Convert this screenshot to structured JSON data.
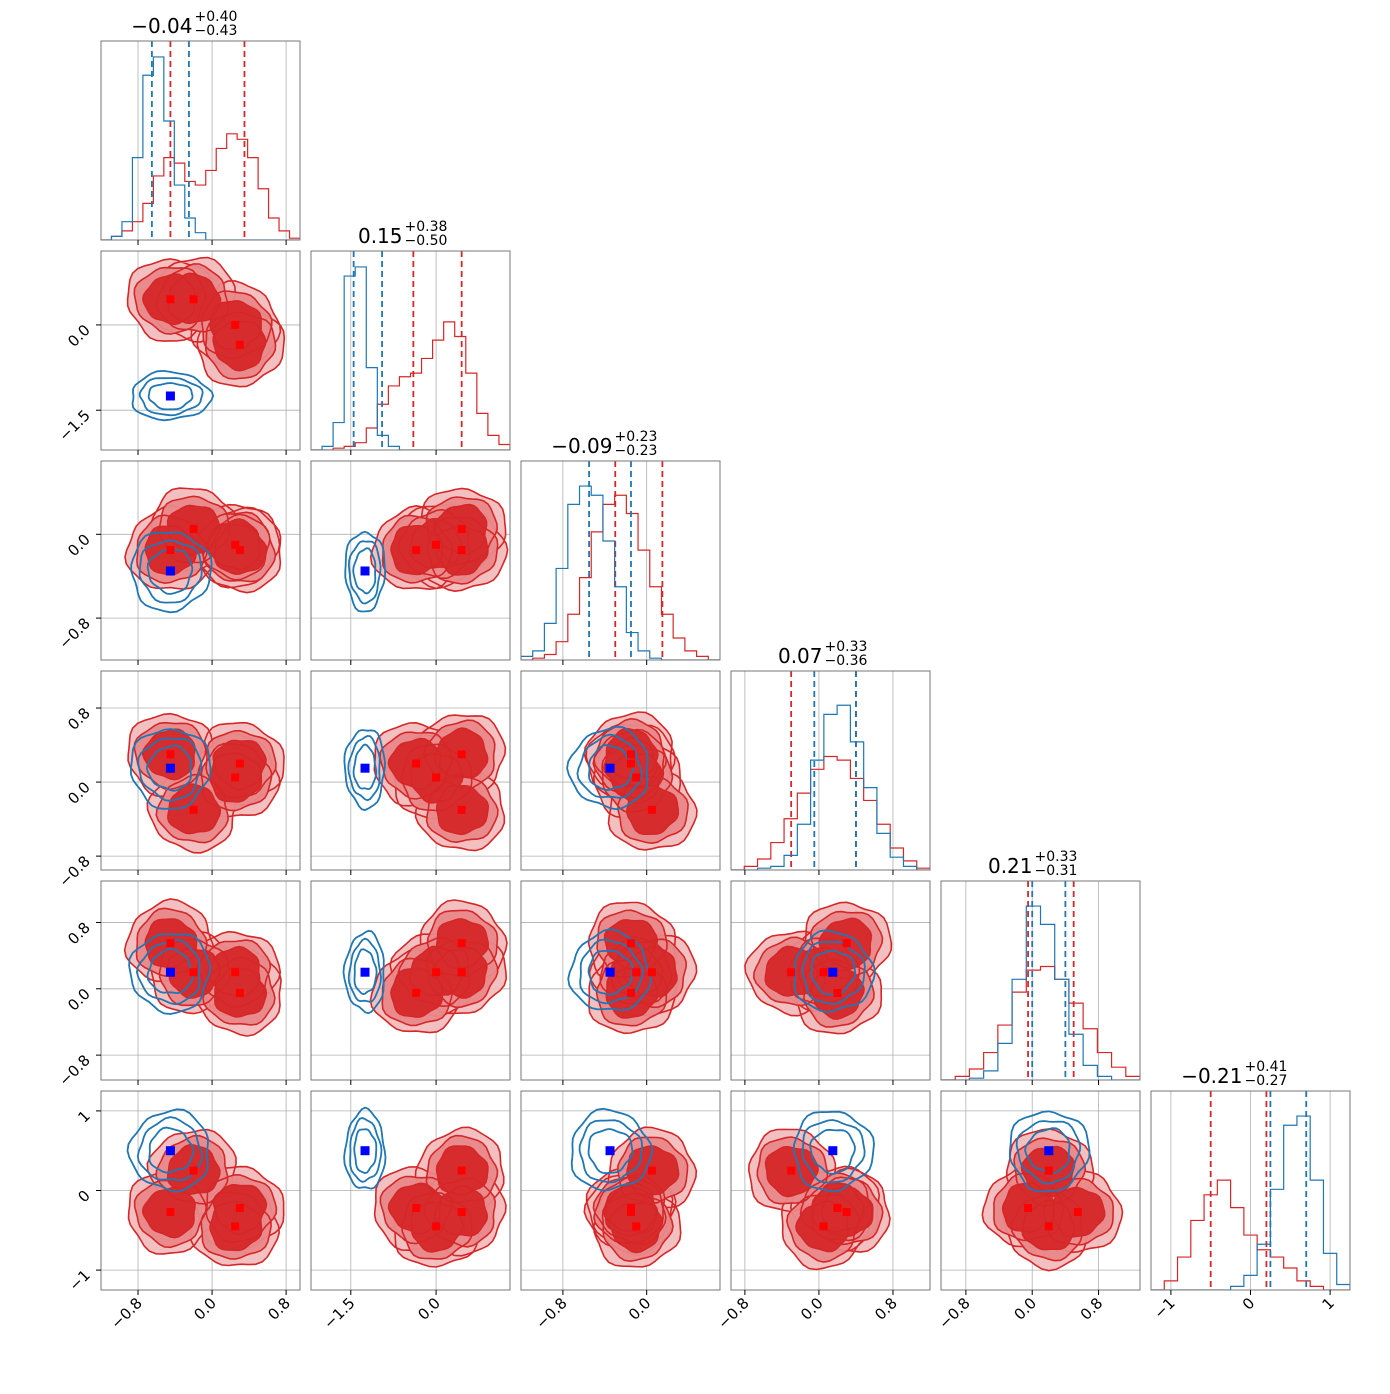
{
  "colors": {
    "red": "#d62728",
    "red_fill": "#e8888a",
    "red_light": "#f2b9ba",
    "blue": "#1f77b4",
    "marker_red": "#ff0000",
    "marker_blue": "#0000ff",
    "grid": "#b0b0b0"
  },
  "chart_data": {
    "type": "corner",
    "n_params": 6,
    "grid": true,
    "titles": [
      {
        "median": "−0.04",
        "plus": "+0.40",
        "minus": "−0.43"
      },
      {
        "median": "0.15",
        "plus": "+0.38",
        "minus": "−0.50"
      },
      {
        "median": "−0.09",
        "plus": "+0.23",
        "minus": "−0.23"
      },
      {
        "median": "0.07",
        "plus": "+0.33",
        "minus": "−0.36"
      },
      {
        "median": "0.21",
        "plus": "+0.33",
        "minus": "−0.31"
      },
      {
        "median": "−0.21",
        "plus": "+0.41",
        "minus": "−0.27"
      }
    ],
    "ranges": [
      [
        -1.2,
        0.95
      ],
      [
        -2.2,
        1.3
      ],
      [
        -1.2,
        0.7
      ],
      [
        -0.95,
        1.2
      ],
      [
        -1.1,
        1.3
      ],
      [
        -1.25,
        1.25
      ]
    ],
    "ticks": [
      {
        "values": [
          -0.8,
          0.0,
          0.8
        ],
        "labels": [
          "−0.8",
          "0.0",
          "0.8"
        ]
      },
      {
        "values": [
          -1.5,
          0.0
        ],
        "labels": [
          "−1.5",
          "0.0"
        ]
      },
      {
        "values": [
          -0.8,
          0.0
        ],
        "labels": [
          "−0.8",
          "0.0"
        ]
      },
      {
        "values": [
          -0.8,
          0.0,
          0.8
        ],
        "labels": [
          "−0.8",
          "0.0",
          "0.8"
        ]
      },
      {
        "values": [
          -0.8,
          0.0,
          0.8
        ],
        "labels": [
          "−0.8",
          "0.0",
          "0.8"
        ]
      },
      {
        "values": [
          -1,
          0,
          1
        ],
        "labels": [
          "−1",
          "0",
          "1"
        ]
      }
    ],
    "red_modes": [
      [
        -0.45,
        0.45,
        -0.15,
        0.3,
        0.55,
        -0.27
      ],
      [
        -0.2,
        0.45,
        0.05,
        -0.3,
        0.2,
        0.25
      ],
      [
        0.25,
        0.0,
        -0.1,
        0.05,
        0.2,
        -0.45
      ],
      [
        0.3,
        -0.35,
        -0.15,
        0.2,
        -0.05,
        -0.22
      ]
    ],
    "blue_truth": [
      -0.45,
      -1.25,
      -0.35,
      0.15,
      0.2,
      0.5
    ],
    "series": [
      {
        "name": "red",
        "quantile_lines": [
          [
            -0.45,
            0.35
          ],
          [
            -0.4,
            0.45
          ],
          [
            -0.3,
            0.15
          ],
          [
            -0.3,
            0.4
          ],
          [
            -0.05,
            0.5
          ],
          [
            -0.5,
            0.2
          ]
        ],
        "hist": [
          [
            0,
            0.02,
            0.05,
            0.1,
            0.2,
            0.35,
            0.45,
            0.42,
            0.32,
            0.3,
            0.38,
            0.5,
            0.58,
            0.55,
            0.45,
            0.28,
            0.12,
            0.05,
            0.01
          ],
          [
            0,
            0,
            0.01,
            0.02,
            0.04,
            0.12,
            0.25,
            0.35,
            0.4,
            0.42,
            0.5,
            0.6,
            0.7,
            0.62,
            0.42,
            0.2,
            0.08,
            0.03
          ],
          [
            0,
            0.01,
            0.03,
            0.1,
            0.25,
            0.45,
            0.7,
            0.85,
            0.9,
            0.8,
            0.6,
            0.4,
            0.25,
            0.12,
            0.05,
            0.02,
            0
          ],
          [
            0,
            0.02,
            0.06,
            0.15,
            0.28,
            0.42,
            0.55,
            0.62,
            0.6,
            0.5,
            0.38,
            0.25,
            0.12,
            0.05,
            0.01
          ],
          [
            0,
            0.02,
            0.06,
            0.15,
            0.3,
            0.48,
            0.6,
            0.62,
            0.55,
            0.42,
            0.28,
            0.15,
            0.07,
            0.02
          ],
          [
            0,
            0.05,
            0.18,
            0.38,
            0.52,
            0.6,
            0.45,
            0.3,
            0.22,
            0.18,
            0.12,
            0.05,
            0.02,
            0,
            0
          ]
        ]
      },
      {
        "name": "blue",
        "quantile_lines": [
          [
            -0.65,
            -0.25
          ],
          [
            -1.45,
            -0.95
          ],
          [
            -0.55,
            -0.15
          ],
          [
            -0.05,
            0.4
          ],
          [
            0.0,
            0.4
          ],
          [
            0.25,
            0.7
          ]
        ],
        "hist": [
          [
            0,
            0.02,
            0.1,
            0.45,
            0.9,
            1.0,
            0.65,
            0.3,
            0.12,
            0.04,
            0,
            0,
            0,
            0,
            0,
            0,
            0,
            0,
            0
          ],
          [
            0,
            0.02,
            0.15,
            0.95,
            1.0,
            0.45,
            0.08,
            0.02,
            0,
            0,
            0,
            0,
            0,
            0,
            0,
            0,
            0,
            0
          ],
          [
            0.02,
            0.05,
            0.2,
            0.5,
            0.85,
            0.95,
            0.9,
            0.65,
            0.4,
            0.15,
            0.05,
            0.01,
            0,
            0,
            0,
            0,
            0
          ],
          [
            0,
            0,
            0.01,
            0.02,
            0.08,
            0.25,
            0.6,
            0.85,
            0.9,
            0.7,
            0.45,
            0.2,
            0.07,
            0.02,
            0
          ],
          [
            0,
            0,
            0.01,
            0.05,
            0.2,
            0.55,
            0.95,
            0.85,
            0.55,
            0.25,
            0.08,
            0.02,
            0,
            0
          ],
          [
            0,
            0,
            0,
            0,
            0,
            0,
            0.02,
            0.08,
            0.25,
            0.55,
            0.9,
            0.95,
            0.6,
            0.2,
            0.03
          ]
        ]
      }
    ]
  }
}
